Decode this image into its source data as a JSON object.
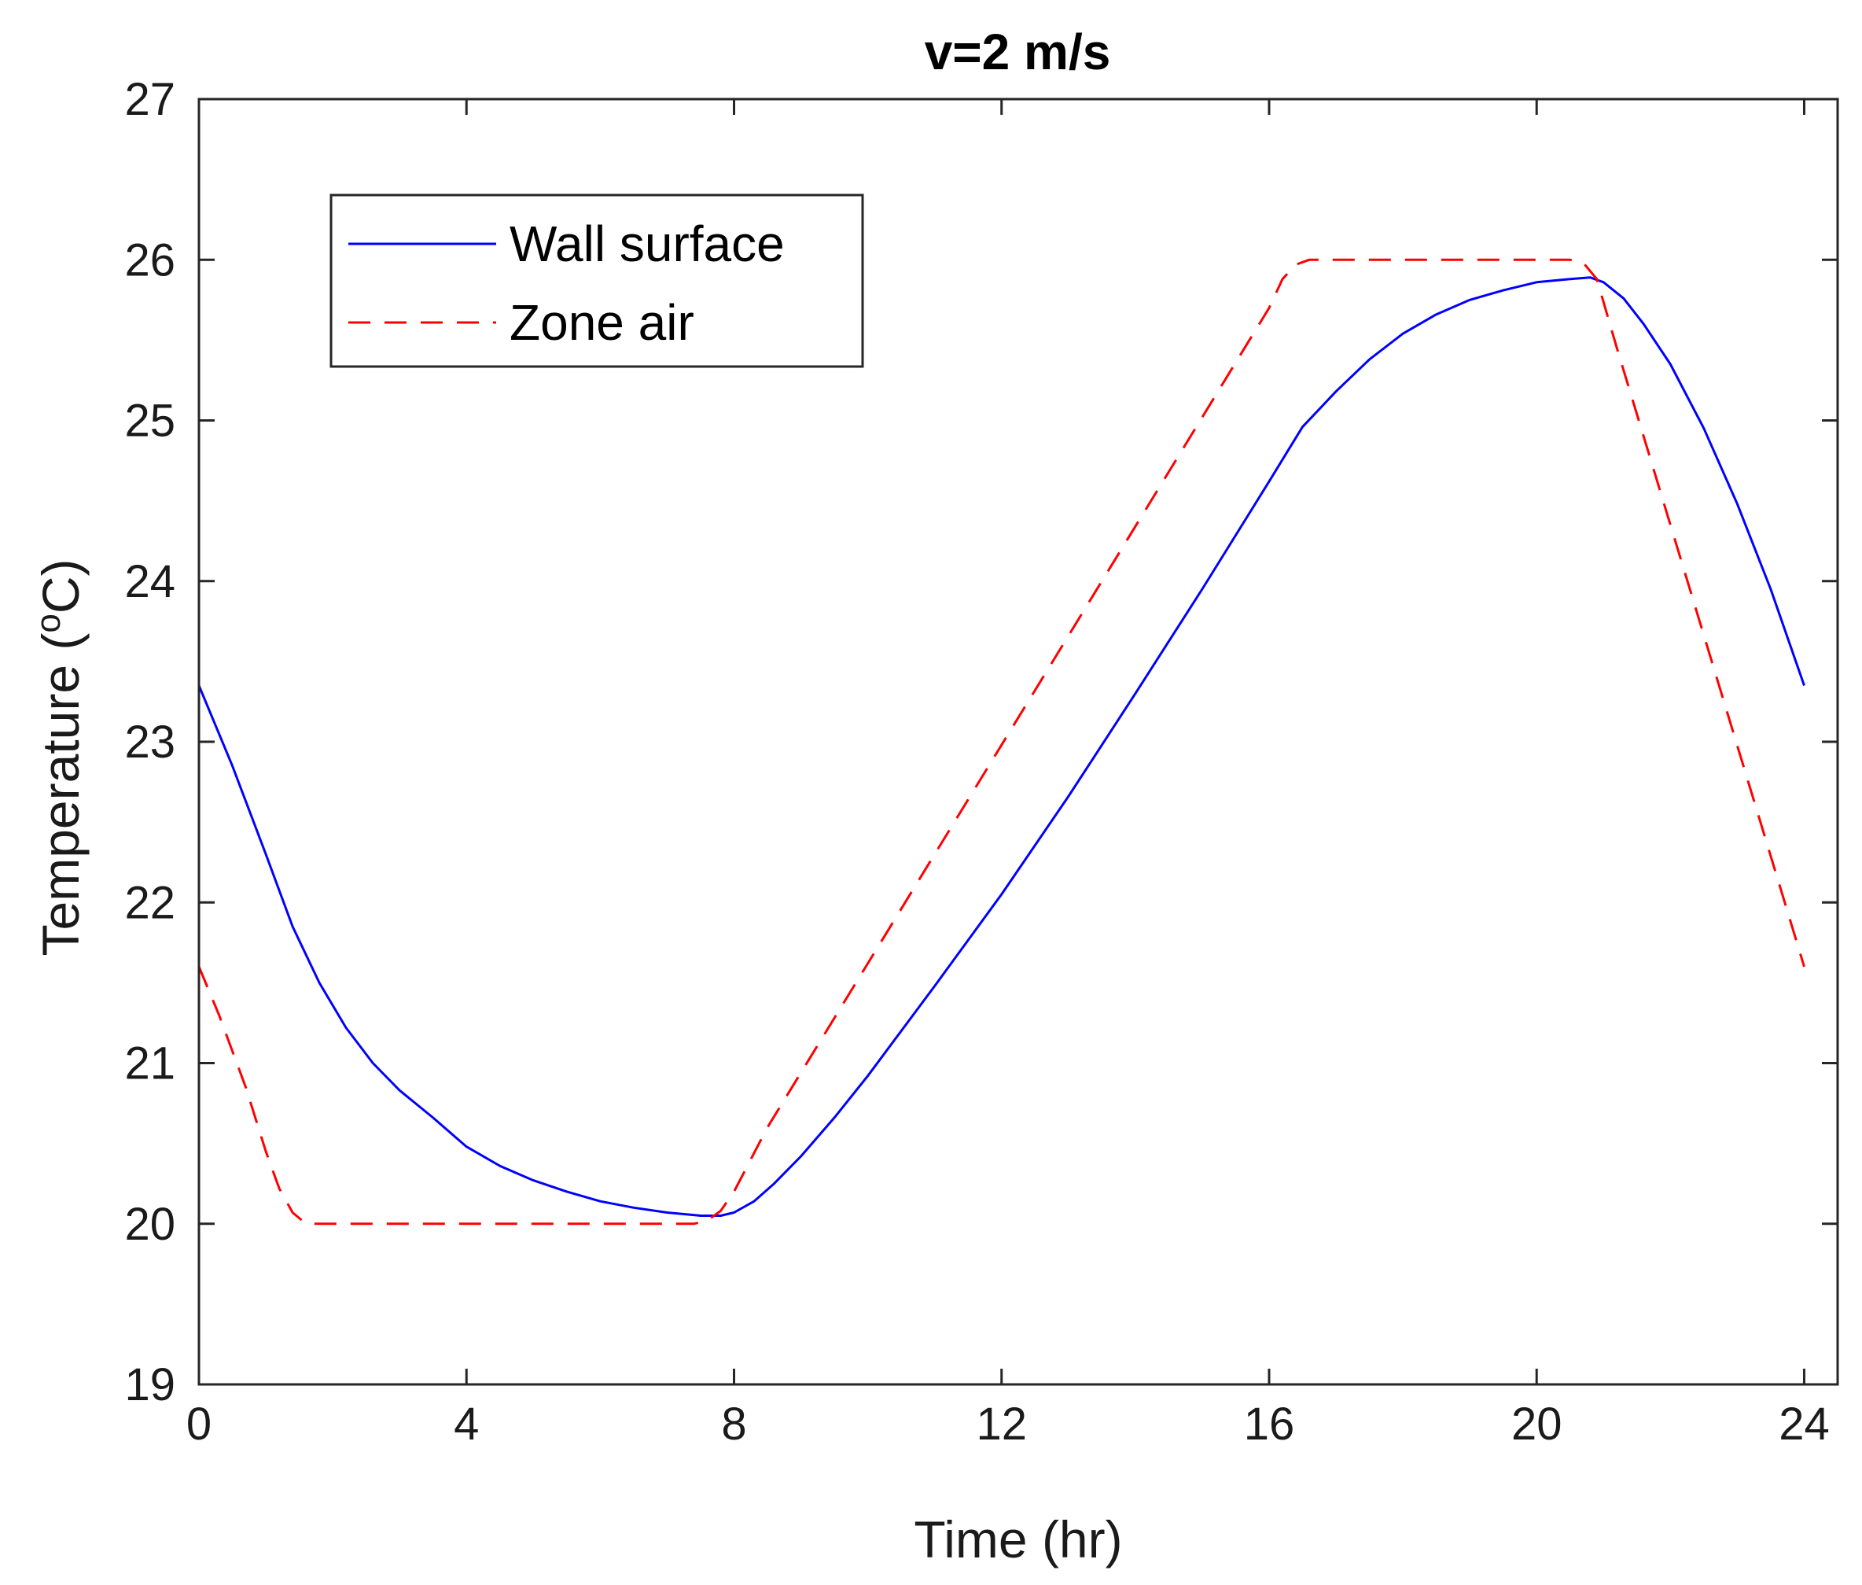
{
  "chart_data": {
    "type": "line",
    "title": "v=2 m/s",
    "xlabel": "Time (hr)",
    "ylabel": {
      "prefix": "Temperature (",
      "sup": "o",
      "suffix": "C)"
    },
    "xlim": [
      0,
      24.5
    ],
    "ylim": [
      19,
      27
    ],
    "xticks": [
      0,
      4,
      8,
      12,
      16,
      20,
      24
    ],
    "xtick_labels": [
      "0",
      "4",
      "8",
      "12",
      "16",
      "20",
      "24"
    ],
    "yticks": [
      19,
      20,
      21,
      22,
      23,
      24,
      25,
      26,
      27
    ],
    "ytick_labels": [
      "19",
      "20",
      "21",
      "22",
      "23",
      "24",
      "25",
      "26",
      "27"
    ],
    "grid": false,
    "legend": {
      "placement": "top-left",
      "entries": [
        "Wall surface",
        "Zone air"
      ]
    },
    "series": [
      {
        "name": "Wall surface",
        "color": "#0000ff",
        "style": "solid",
        "x": [
          0,
          0.5,
          1.0,
          1.4,
          1.8,
          2.2,
          2.6,
          3.0,
          3.5,
          4.0,
          4.5,
          5.0,
          5.5,
          6.0,
          6.5,
          7.0,
          7.5,
          7.8,
          8.0,
          8.3,
          8.6,
          9.0,
          9.5,
          10,
          11,
          12,
          13,
          14,
          15,
          16,
          16.5,
          17,
          17.5,
          18,
          18.5,
          19,
          19.5,
          20,
          20.5,
          20.8,
          21,
          21.3,
          21.6,
          22,
          22.5,
          23,
          23.5,
          24
        ],
        "y": [
          23.35,
          22.85,
          22.3,
          21.85,
          21.5,
          21.22,
          21.0,
          20.83,
          20.66,
          20.48,
          20.36,
          20.27,
          20.2,
          20.14,
          20.1,
          20.07,
          20.05,
          20.05,
          20.07,
          20.14,
          20.25,
          20.42,
          20.66,
          20.92,
          21.48,
          22.05,
          22.66,
          23.3,
          23.95,
          24.62,
          24.96,
          25.18,
          25.38,
          25.54,
          25.66,
          25.75,
          25.81,
          25.86,
          25.88,
          25.89,
          25.86,
          25.76,
          25.6,
          25.35,
          24.95,
          24.48,
          23.95,
          23.35
        ]
      },
      {
        "name": "Zone air",
        "color": "#ff0000",
        "style": "dashed",
        "x": [
          0,
          0.3,
          0.7,
          1.0,
          1.2,
          1.4,
          1.6,
          2,
          4,
          6,
          7.4,
          7.6,
          7.8,
          8.0,
          8.5,
          16,
          16.2,
          16.4,
          16.6,
          17,
          19,
          20.5,
          20.7,
          20.9,
          21.2,
          24
        ],
        "y": [
          21.6,
          21.3,
          20.85,
          20.45,
          20.22,
          20.07,
          20.0,
          20.0,
          20.0,
          20.0,
          20.0,
          20.02,
          20.08,
          20.2,
          20.6,
          25.7,
          25.88,
          25.97,
          26.0,
          26.0,
          26.0,
          26.0,
          25.98,
          25.88,
          25.45,
          21.6
        ]
      }
    ]
  }
}
